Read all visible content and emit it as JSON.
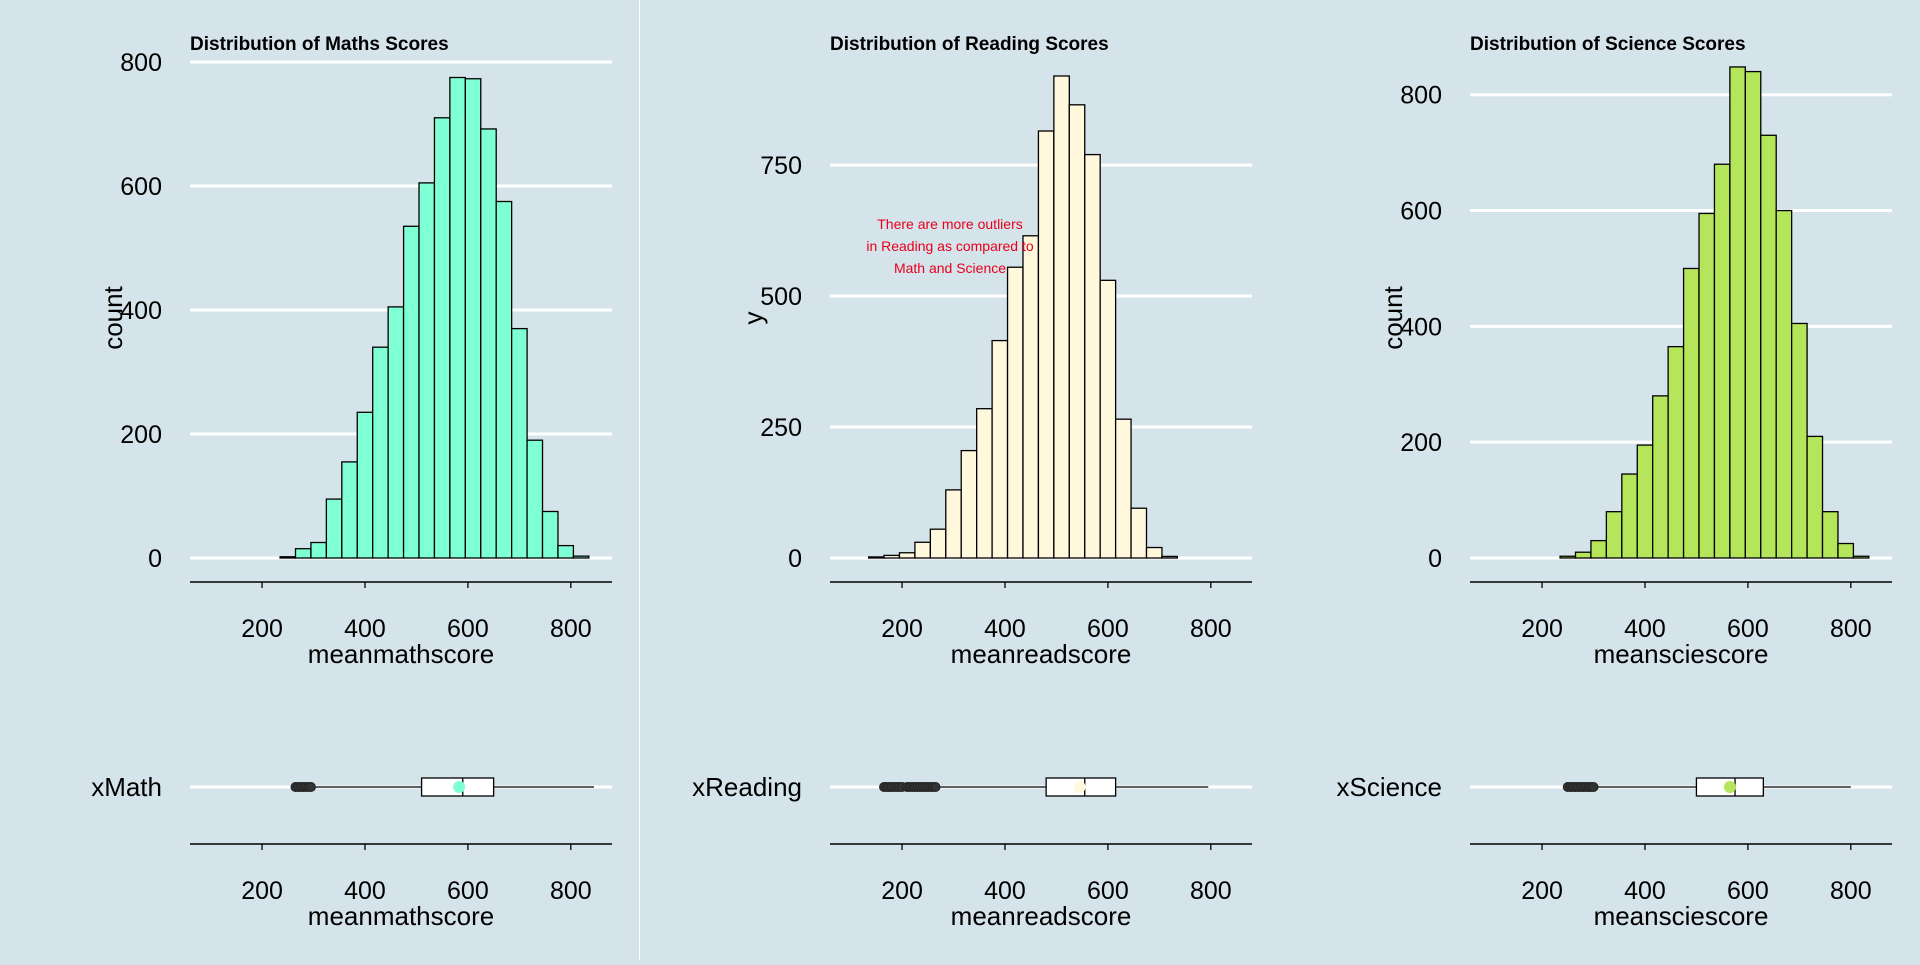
{
  "chart_data": [
    {
      "type": "histogram",
      "title": "Distribution of Maths Scores",
      "xlabel": "meanmathscore",
      "ylabel": "count",
      "fill_color": "#7fffd4",
      "xlim": [
        60,
        880
      ],
      "ylim": [
        0,
        800
      ],
      "xticks": [
        200,
        400,
        600,
        800
      ],
      "yticks": [
        0,
        200,
        400,
        600,
        800
      ],
      "ytick_labels": [
        "0",
        "200",
        "400",
        "600",
        "800"
      ],
      "bin_width": 30,
      "bins": [
        {
          "x": 250,
          "count": 2
        },
        {
          "x": 280,
          "count": 15
        },
        {
          "x": 310,
          "count": 25
        },
        {
          "x": 340,
          "count": 95
        },
        {
          "x": 370,
          "count": 155
        },
        {
          "x": 400,
          "count": 235
        },
        {
          "x": 430,
          "count": 340
        },
        {
          "x": 460,
          "count": 405
        },
        {
          "x": 490,
          "count": 535
        },
        {
          "x": 520,
          "count": 605
        },
        {
          "x": 550,
          "count": 710
        },
        {
          "x": 580,
          "count": 775
        },
        {
          "x": 610,
          "count": 773
        },
        {
          "x": 640,
          "count": 692
        },
        {
          "x": 670,
          "count": 575
        },
        {
          "x": 700,
          "count": 370
        },
        {
          "x": 730,
          "count": 190
        },
        {
          "x": 760,
          "count": 75
        },
        {
          "x": 790,
          "count": 20
        },
        {
          "x": 820,
          "count": 3
        }
      ],
      "grid": true
    },
    {
      "type": "histogram",
      "title": "Distribution of Reading Scores",
      "xlabel": "meanreadscore",
      "ylabel": "y",
      "fill_color": "#fff8dc",
      "xlim": [
        60,
        880
      ],
      "ylim": [
        0,
        920
      ],
      "xticks": [
        200,
        400,
        600,
        800
      ],
      "yticks": [
        0,
        250,
        500,
        750
      ],
      "ytick_labels": [
        "0",
        "250",
        "500",
        "750"
      ],
      "bin_width": 30,
      "bins": [
        {
          "x": 150,
          "count": 2
        },
        {
          "x": 180,
          "count": 5
        },
        {
          "x": 210,
          "count": 10
        },
        {
          "x": 240,
          "count": 30
        },
        {
          "x": 270,
          "count": 55
        },
        {
          "x": 300,
          "count": 130
        },
        {
          "x": 330,
          "count": 205
        },
        {
          "x": 360,
          "count": 285
        },
        {
          "x": 390,
          "count": 415
        },
        {
          "x": 420,
          "count": 555
        },
        {
          "x": 450,
          "count": 615
        },
        {
          "x": 480,
          "count": 815
        },
        {
          "x": 510,
          "count": 920
        },
        {
          "x": 540,
          "count": 865
        },
        {
          "x": 570,
          "count": 770
        },
        {
          "x": 600,
          "count": 530
        },
        {
          "x": 630,
          "count": 265
        },
        {
          "x": 660,
          "count": 95
        },
        {
          "x": 690,
          "count": 20
        },
        {
          "x": 720,
          "count": 3
        }
      ],
      "annotation": "There are more outliers\nin Reading as compared to\nMath and Science",
      "annotation_color": "#e8001a",
      "grid": true
    },
    {
      "type": "histogram",
      "title": "Distribution of Science Scores",
      "xlabel": "meansciescore",
      "ylabel": "count",
      "fill_color": "#b4e55a",
      "xlim": [
        60,
        880
      ],
      "ylim": [
        0,
        860
      ],
      "xticks": [
        200,
        400,
        600,
        800
      ],
      "yticks": [
        0,
        200,
        400,
        600,
        800
      ],
      "ytick_labels": [
        "0",
        "200",
        "400",
        "600",
        "800"
      ],
      "bin_width": 30,
      "bins": [
        {
          "x": 250,
          "count": 3
        },
        {
          "x": 280,
          "count": 10
        },
        {
          "x": 310,
          "count": 30
        },
        {
          "x": 340,
          "count": 80
        },
        {
          "x": 370,
          "count": 145
        },
        {
          "x": 400,
          "count": 195
        },
        {
          "x": 430,
          "count": 280
        },
        {
          "x": 460,
          "count": 365
        },
        {
          "x": 490,
          "count": 500
        },
        {
          "x": 520,
          "count": 595
        },
        {
          "x": 550,
          "count": 680
        },
        {
          "x": 580,
          "count": 848
        },
        {
          "x": 610,
          "count": 840
        },
        {
          "x": 640,
          "count": 730
        },
        {
          "x": 670,
          "count": 600
        },
        {
          "x": 700,
          "count": 405
        },
        {
          "x": 730,
          "count": 210
        },
        {
          "x": 760,
          "count": 80
        },
        {
          "x": 790,
          "count": 25
        },
        {
          "x": 820,
          "count": 3
        }
      ],
      "grid": true
    },
    {
      "type": "boxplot",
      "category": "Math",
      "x_prefix": "x",
      "xlabel": "meanmathscore",
      "xticks": [
        200,
        400,
        600,
        800
      ],
      "xlim": [
        60,
        880
      ],
      "fill_color": "#7fffd4",
      "q1": 510,
      "median": 590,
      "q3": 650,
      "whisker_low": 300,
      "whisker_high": 845,
      "mean": 583,
      "outliers": [
        265,
        270,
        275,
        280,
        285,
        290,
        295
      ]
    },
    {
      "type": "boxplot",
      "category": "Reading",
      "x_prefix": "x",
      "xlabel": "meanreadscore",
      "xticks": [
        200,
        400,
        600,
        800
      ],
      "xlim": [
        60,
        880
      ],
      "fill_color": "#fff8dc",
      "q1": 480,
      "median": 555,
      "q3": 615,
      "whisker_low": 270,
      "whisker_high": 795,
      "mean": 545,
      "outliers": [
        165,
        170,
        175,
        180,
        185,
        190,
        195,
        200,
        210,
        215,
        220,
        225,
        230,
        235,
        240,
        245,
        250,
        255,
        260,
        265
      ]
    },
    {
      "type": "boxplot",
      "category": "Science",
      "x_prefix": "x",
      "xlabel": "meansciescore",
      "xticks": [
        200,
        400,
        600,
        800
      ],
      "xlim": [
        60,
        880
      ],
      "fill_color": "#b4e55a",
      "q1": 500,
      "median": 575,
      "q3": 630,
      "whisker_low": 305,
      "whisker_high": 800,
      "mean": 565,
      "outliers": [
        250,
        255,
        260,
        265,
        270,
        275,
        280,
        285,
        290,
        295,
        300
      ]
    }
  ]
}
